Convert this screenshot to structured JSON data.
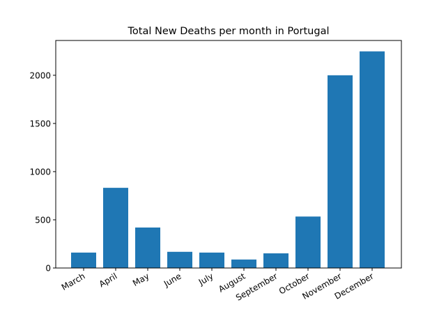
{
  "chart_data": {
    "type": "bar",
    "title": "Total New Deaths per month in Portugal",
    "xlabel": "",
    "ylabel": "",
    "categories": [
      "March",
      "April",
      "May",
      "June",
      "July",
      "August",
      "September",
      "October",
      "November",
      "December"
    ],
    "values": [
      160,
      832,
      420,
      168,
      160,
      88,
      152,
      534,
      2000,
      2248
    ],
    "ylim": [
      0,
      2361
    ],
    "yticks": [
      0,
      500,
      1000,
      1500,
      2000
    ],
    "grid": false,
    "legend": "none",
    "bar_color": "#1f77b4"
  }
}
